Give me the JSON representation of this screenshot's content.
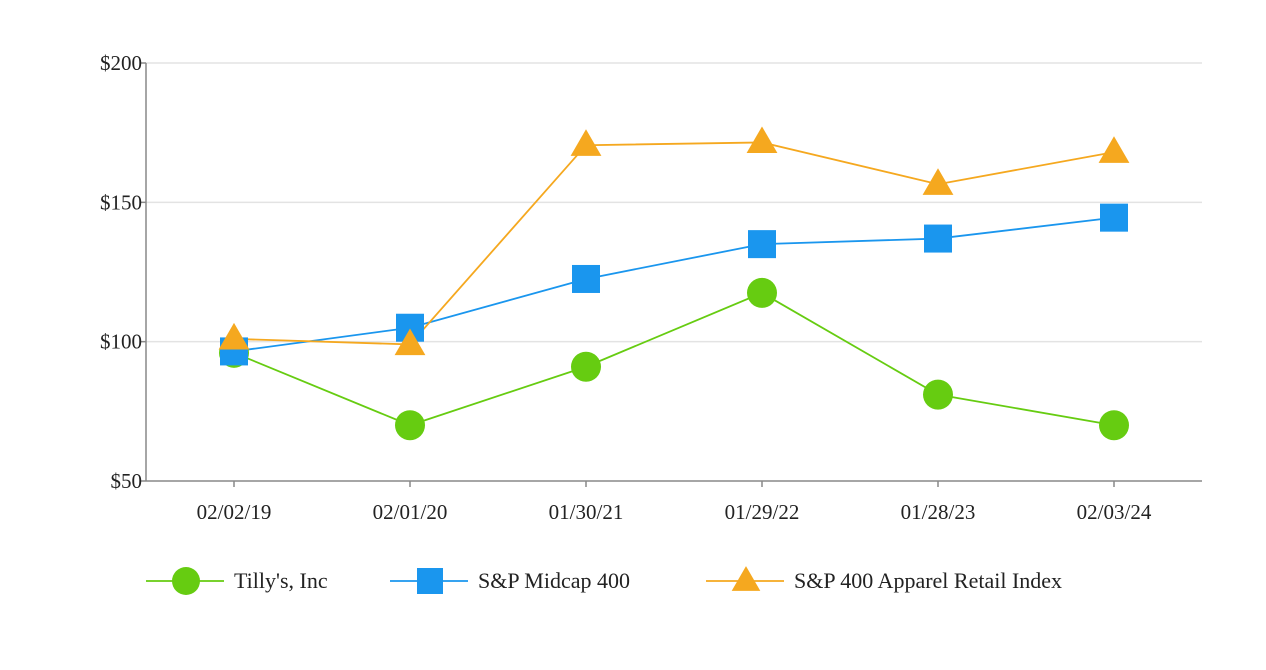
{
  "chart_data": {
    "type": "line",
    "title": "",
    "xlabel": "",
    "ylabel": "",
    "categories": [
      "02/02/19",
      "02/01/20",
      "01/30/21",
      "01/29/22",
      "01/28/23",
      "02/03/24"
    ],
    "ylim": [
      50,
      200
    ],
    "yticks": [
      50,
      100,
      150,
      200
    ],
    "ytick_labels": [
      "$50",
      "$100",
      "$150",
      "$200"
    ],
    "grid": true,
    "legend_position": "bottom",
    "series": [
      {
        "name": "Tilly's, Inc",
        "marker": "circle",
        "color": "#66cc11",
        "values": [
          96,
          70,
          91,
          117.5,
          81,
          70
        ]
      },
      {
        "name": "S&P Midcap 400",
        "marker": "square",
        "color": "#1a96ee",
        "values": [
          96.5,
          105,
          122.5,
          135,
          137,
          144.5
        ]
      },
      {
        "name": "S&P 400 Apparel Retail Index",
        "marker": "triangle",
        "color": "#f5a81f",
        "values": [
          101,
          99,
          170.5,
          171.5,
          156.5,
          168
        ]
      }
    ]
  }
}
